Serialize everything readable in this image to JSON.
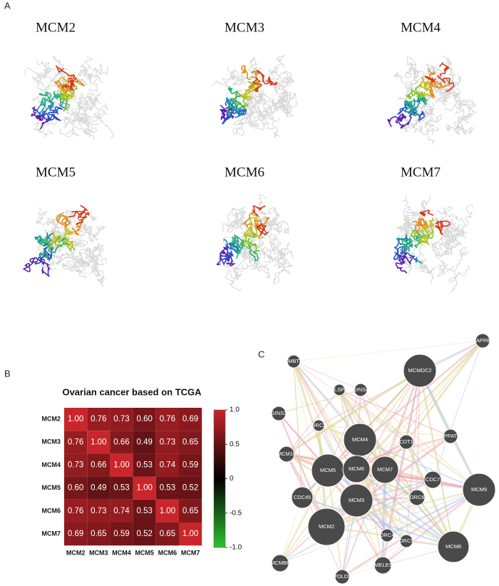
{
  "panel_labels": [
    "A",
    "B",
    "C"
  ],
  "panel_a": {
    "structures": [
      "MCM2",
      "MCM3",
      "MCM4",
      "MCM5",
      "MCM6",
      "MCM7"
    ]
  },
  "chart_data": {
    "type": "heatmap",
    "title": "Ovarian cancer based on TCGA",
    "categories": [
      "MCM2",
      "MCM3",
      "MCM4",
      "MCM5",
      "MCM6",
      "MCM7"
    ],
    "y_categories": [
      "MCM2",
      "MCM3",
      "MCM4",
      "MCM5",
      "MCM6",
      "MCM7"
    ],
    "values": [
      [
        1,
        0.76,
        0.73,
        0.6,
        0.76,
        0.69
      ],
      [
        0.76,
        1,
        0.66,
        0.49,
        0.73,
        0.65
      ],
      [
        0.73,
        0.66,
        1,
        0.53,
        0.74,
        0.59
      ],
      [
        0.6,
        0.49,
        0.53,
        1,
        0.53,
        0.52
      ],
      [
        0.76,
        0.73,
        0.74,
        0.53,
        1,
        0.65
      ],
      [
        0.69,
        0.65,
        0.59,
        0.52,
        0.65,
        1
      ]
    ],
    "value_labels": [
      [
        "1.00",
        "0.76",
        "0.73",
        "0.60",
        "0.76",
        "0.69"
      ],
      [
        "0.76",
        "1.00",
        "0.66",
        "0.49",
        "0.73",
        "0.65"
      ],
      [
        "0.73",
        "0.66",
        "1.00",
        "0.53",
        "0.74",
        "0.59"
      ],
      [
        "0.60",
        "0.49",
        "0.53",
        "1.00",
        "0.53",
        "0.52"
      ],
      [
        "0.76",
        "0.73",
        "0.74",
        "0.53",
        "1.00",
        "0.65"
      ],
      [
        "0.69",
        "0.65",
        "0.59",
        "0.52",
        "0.65",
        "1.00"
      ]
    ],
    "zlim": [
      -1,
      1
    ],
    "zticks": [
      {
        "value": 1,
        "label": "1.0"
      },
      {
        "value": 0.5,
        "label": "0.5"
      },
      0,
      {
        "value": -0.5,
        "label": "-0.5"
      },
      {
        "value": -1,
        "label": "-1.0"
      }
    ],
    "colormap": [
      "#2ec22e",
      "#000000",
      "#c8262b"
    ]
  },
  "network": {
    "nodes": [
      "MAPRE2",
      "L3MBTL1",
      "CLSPN",
      "GINS4",
      "MCMDC2",
      "GINS3",
      "ORC3",
      "PPAT",
      "MCM4",
      "CDT1",
      "MCM10",
      "MCM5",
      "MCM6",
      "MCM7",
      "CDC7",
      "MCM9",
      "CDC45",
      "MCM3",
      "ORC6",
      "ORC4",
      "ORC5",
      "MCM2",
      "MCM8",
      "MCMBP",
      "TIMELESS",
      "POLD3"
    ]
  }
}
